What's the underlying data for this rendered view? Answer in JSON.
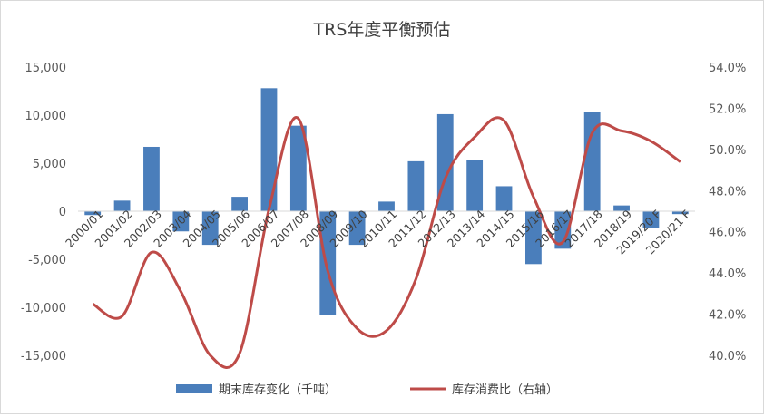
{
  "chart_data": {
    "type": "bar",
    "title": "TRS年度平衡预估",
    "categories": [
      "2000/01",
      "2001/02",
      "2002/03",
      "2003/04",
      "2004/05",
      "2005/06",
      "2006/07",
      "2007/08",
      "2008/09",
      "2009/10",
      "2010/11",
      "2011/12",
      "2012/13",
      "2013/14",
      "2014/15",
      "2015/16",
      "2016/17",
      "2017/18",
      "2018/19",
      "2019/20 F",
      "2020/21 F"
    ],
    "series": [
      {
        "name": "期末库存变化（千吨）",
        "type": "bar",
        "axis": "left",
        "color": "#4a7ebb",
        "values": [
          -400,
          1100,
          6700,
          -2100,
          -3500,
          1500,
          12800,
          8900,
          -10800,
          -3500,
          1000,
          5200,
          10100,
          5300,
          2600,
          -5500,
          -3900,
          10300,
          600,
          -1700,
          -300
        ]
      },
      {
        "name": "库存消费比（右轴）",
        "type": "line",
        "axis": "right",
        "color": "#be4b48",
        "values": [
          42.5,
          41.9,
          45.0,
          43.1,
          40.0,
          40.1,
          47.1,
          51.5,
          44.1,
          41.3,
          41.2,
          43.7,
          48.6,
          50.6,
          51.4,
          47.7,
          45.5,
          50.8,
          50.9,
          50.4,
          49.4
        ]
      }
    ],
    "y_left": {
      "ylim": [
        -15000,
        15000
      ],
      "ticks": [
        15000,
        10000,
        5000,
        0,
        -5000,
        -10000,
        -15000
      ],
      "tick_labels": [
        "15,000",
        "10,000",
        "5,000",
        "0",
        "-5,000",
        "-10,000",
        "-15,000"
      ]
    },
    "y_right": {
      "ylim": [
        40.0,
        54.0
      ],
      "ticks": [
        54,
        52,
        50,
        48,
        46,
        44,
        42,
        40
      ],
      "tick_labels": [
        "54.0%",
        "52.0%",
        "50.0%",
        "48.0%",
        "46.0%",
        "44.0%",
        "42.0%",
        "40.0%"
      ]
    },
    "grid": false,
    "legend": "bottom"
  }
}
